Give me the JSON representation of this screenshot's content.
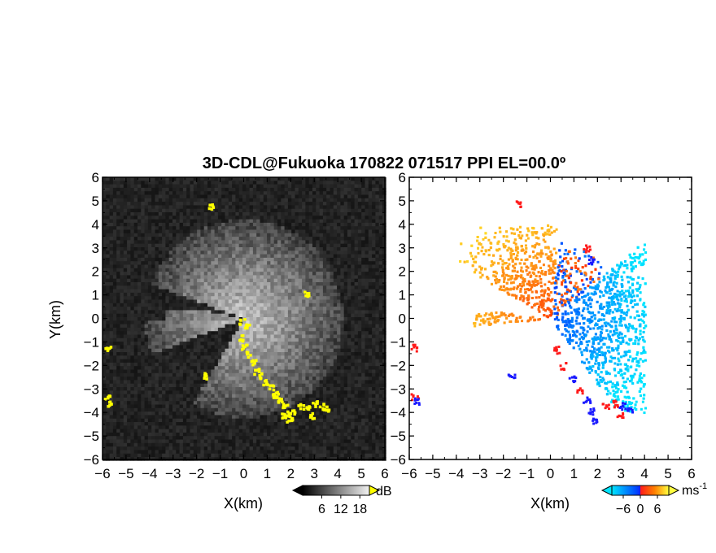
{
  "title": "3D-CDL@Fukuoka 170822 071517 PPI EL=00.0º",
  "chart_data": [
    {
      "type": "heatmap",
      "field": "reflectivity",
      "xlabel": "X(km)",
      "ylabel": "Y(km)",
      "xlim": [
        -6,
        6
      ],
      "ylim": [
        -6,
        6
      ],
      "xticks": [
        "-6",
        "-5",
        "-4",
        "-3",
        "-2",
        "-1",
        "0",
        "1",
        "2",
        "3",
        "4",
        "5",
        "6"
      ],
      "yticks": [
        "-6",
        "-5",
        "-4",
        "-3",
        "-2",
        "-1",
        "0",
        "1",
        "2",
        "3",
        "4",
        "5",
        "6"
      ],
      "colorbar": {
        "unit": "dB",
        "tick_labels": [
          "6",
          "12",
          "18"
        ],
        "ticks": [
          6,
          12,
          18
        ],
        "range": [
          0,
          21
        ],
        "colors": {
          "low": "#000000",
          "high": "#f2f2f2",
          "over": "#ffff00"
        }
      }
    },
    {
      "type": "heatmap",
      "field": "doppler_velocity",
      "xlabel": "X(km)",
      "ylabel": "",
      "xlim": [
        -6,
        6
      ],
      "ylim": [
        -6,
        6
      ],
      "xticks": [
        "-6",
        "-5",
        "-4",
        "-3",
        "-2",
        "-1",
        "0",
        "1",
        "2",
        "3",
        "4",
        "5",
        "6"
      ],
      "yticks": [
        "-6",
        "-5",
        "-4",
        "-3",
        "-2",
        "-1",
        "0",
        "1",
        "2",
        "3",
        "4",
        "5",
        "6"
      ],
      "colorbar": {
        "unit": "ms",
        "unit_exponent": "-1",
        "tick_labels": [
          "-6",
          "0",
          "6"
        ],
        "ticks": [
          -6,
          0,
          6
        ],
        "range": [
          -10,
          10
        ],
        "colors": {
          "min": "#00e5ff",
          "neg": "#0040ff",
          "zero_neg": "#1a1aff",
          "zero_pos": "#ff1a1a",
          "pos": "#ff8000",
          "max": "#ffff40"
        }
      }
    }
  ]
}
